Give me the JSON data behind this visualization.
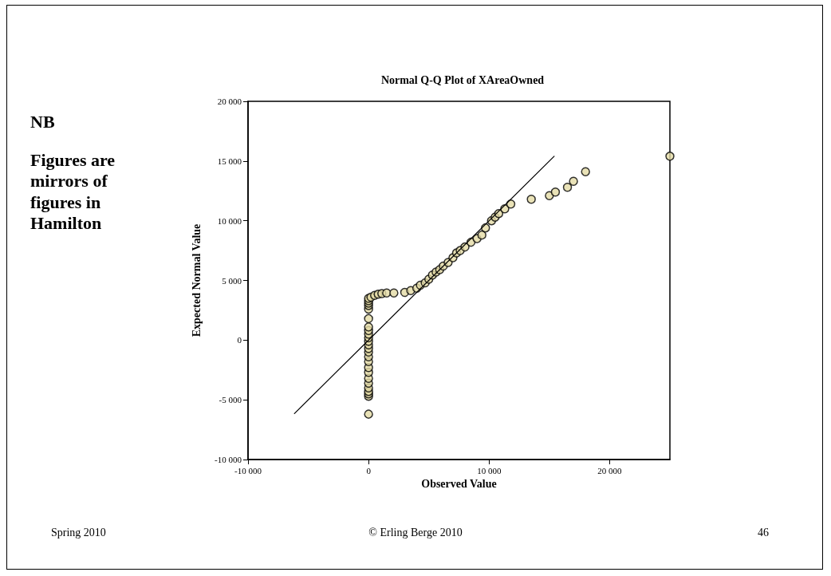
{
  "chart_data": {
    "type": "scatter",
    "title": "Normal Q-Q Plot of XAreaOwned",
    "xlabel": "Observed Value",
    "ylabel": "Expected Normal Value",
    "annotations": [
      "NB",
      "Figures are mirrors of figures in Hamilton",
      "Spring 2010",
      "© Erling Berge 2010",
      "46"
    ],
    "xlim": [
      -10000,
      25000
    ],
    "ylim": [
      -10000,
      20000
    ],
    "xticks": [
      {
        "value": -10000,
        "label": "-10 000"
      },
      0,
      {
        "value": 10000,
        "label": "10 000"
      },
      {
        "value": 20000,
        "label": "20 000"
      }
    ],
    "yticks": [
      {
        "value": -10000,
        "label": "-10 000"
      },
      {
        "value": -5000,
        "label": "-5 000"
      },
      0,
      {
        "value": 5000,
        "label": "5 000"
      },
      {
        "value": 10000,
        "label": "10 000"
      },
      {
        "value": 15000,
        "label": "15 000"
      },
      {
        "value": 20000,
        "label": "20 000"
      }
    ],
    "grid": false,
    "marker": "circle",
    "series": [
      {
        "color": "#e3dba5",
        "x": [
          0,
          0,
          0,
          0,
          0,
          0,
          0,
          0,
          0,
          0,
          0,
          0,
          0,
          0,
          0,
          0,
          0,
          0,
          0,
          0,
          0,
          0,
          0,
          0,
          0,
          200,
          500,
          800,
          1100,
          1500,
          2100,
          3000,
          3500,
          4000,
          4300,
          4700,
          5000,
          5300,
          5600,
          5900,
          6200,
          6600,
          7000,
          7300,
          7600,
          8000,
          8500,
          9000,
          9400,
          9700,
          10200,
          10500,
          10800,
          11300,
          11800,
          13500,
          15000,
          15500,
          16500,
          17000,
          18000,
          25000
        ],
        "values": [
          -6200,
          -4700,
          -4500,
          -4300,
          -4000,
          -3600,
          -3200,
          -2700,
          -2300,
          -1800,
          -1400,
          -1000,
          -700,
          -400,
          -100,
          200,
          500,
          800,
          1100,
          1800,
          2600,
          2900,
          3100,
          3300,
          3500,
          3600,
          3750,
          3850,
          3900,
          3950,
          3950,
          4000,
          4150,
          4350,
          4600,
          4800,
          5100,
          5450,
          5700,
          5900,
          6200,
          6500,
          6900,
          7300,
          7500,
          7800,
          8200,
          8500,
          8800,
          9400,
          10000,
          10300,
          10600,
          11000,
          11400,
          11800,
          12100,
          12400,
          12800,
          13300,
          14100,
          15400
        ]
      },
      {
        "type": "line",
        "color": "#000000",
        "marker": "none",
        "line_style": "solid",
        "x": [
          -6150,
          15400
        ],
        "values": [
          -6150,
          15400
        ]
      }
    ]
  }
}
